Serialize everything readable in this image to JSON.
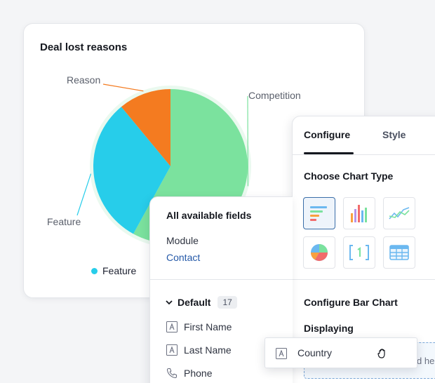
{
  "chart_card": {
    "title": "Deal lost reasons",
    "legend_item": "Feature",
    "legend_color": "#27cdea"
  },
  "chart_data": {
    "type": "pie",
    "title": "Deal lost reasons",
    "slices": [
      {
        "label": "Competition",
        "value": 58,
        "color": "#7be29e"
      },
      {
        "label": "Feature",
        "value": 31,
        "color": "#27cdea"
      },
      {
        "label": "Reason",
        "value": 11,
        "color": "#f47b20"
      }
    ],
    "legend": [
      "Feature"
    ],
    "legend_placement": "bottom"
  },
  "config_panel": {
    "tabs": [
      {
        "label": "Configure",
        "active": true
      },
      {
        "label": "Style",
        "active": false
      }
    ],
    "choose_chart_type_title": "Choose Chart Type",
    "chart_types": [
      "bar-chart-icon",
      "column-chart-icon",
      "line-chart-icon",
      "pie-chart-icon",
      "number-chart-icon",
      "table-chart-icon"
    ],
    "configure_title": "Configure Bar Chart",
    "displaying_label": "Displaying",
    "drop_hint": "d he"
  },
  "fields_panel": {
    "title": "All available fields",
    "module_label": "Module",
    "module_value": "Contact",
    "group_label": "Default",
    "group_count": "17",
    "fields": [
      {
        "label": "First Name",
        "icon": "text-field-icon"
      },
      {
        "label": "Last Name",
        "icon": "text-field-icon"
      },
      {
        "label": "Phone",
        "icon": "phone-icon"
      }
    ]
  },
  "drag_chip": {
    "label": "Country",
    "icon": "text-field-icon"
  }
}
